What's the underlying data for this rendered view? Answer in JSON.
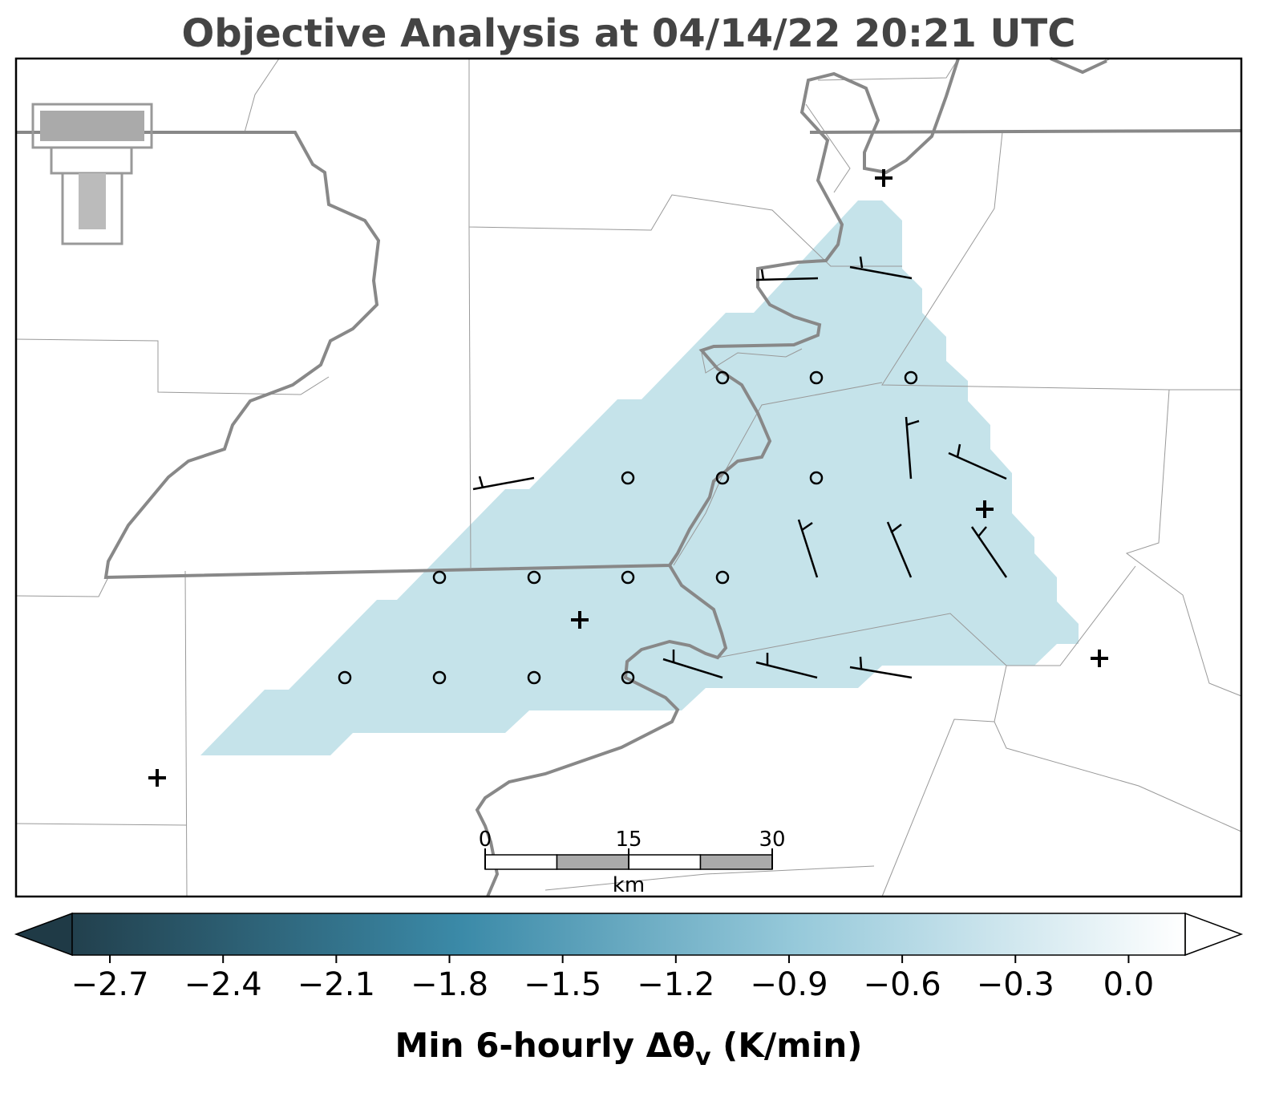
{
  "header": {
    "title": "Objective Analysis at 04/14/22 20:21 UTC"
  },
  "chart_data": {
    "type": "colorbar",
    "clim": [
      -2.8,
      0.15
    ],
    "ticks": [
      {
        "value": -2.7,
        "label": "−2.7"
      },
      {
        "value": -2.4,
        "label": "−2.4"
      },
      {
        "value": -2.1,
        "label": "−2.1"
      },
      {
        "value": -1.8,
        "label": "−1.8"
      },
      {
        "value": -1.5,
        "label": "−1.5"
      },
      {
        "value": -1.2,
        "label": "−1.2"
      },
      {
        "value": -0.9,
        "label": "−0.9"
      },
      {
        "value": -0.6,
        "label": "−0.6"
      },
      {
        "value": -0.3,
        "label": "−0.3"
      },
      {
        "value": 0,
        "label": "0.0"
      }
    ],
    "label": {
      "text": "Min 6-hourly Δθ",
      "subscript": "v",
      "suffix": " (K/min)"
    }
  },
  "scale_bar": {
    "ticks": [
      0,
      15,
      30
    ],
    "unit": "km"
  }
}
